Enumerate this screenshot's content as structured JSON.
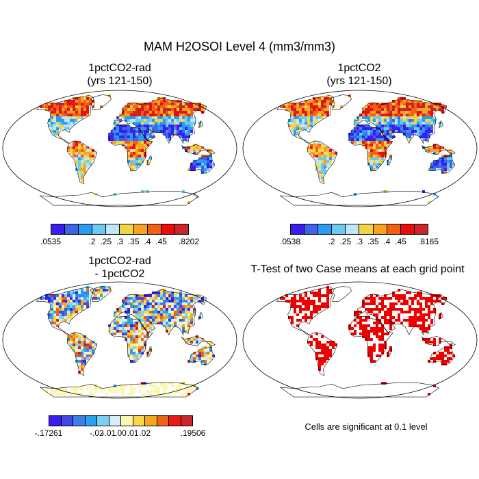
{
  "title": "MAM H2OSOI Level 4 (mm3/mm3)",
  "chart_data": [
    {
      "type": "heatmap",
      "title_line1": "1pctCO2-rad",
      "title_line2": "(yrs 121-150)",
      "colorbar": {
        "colors": [
          "#3a1df0",
          "#3f63e6",
          "#2a9bef",
          "#6ccaf2",
          "#bfe6f7",
          "#f3d446",
          "#f6a321",
          "#f26016",
          "#ee0b0b",
          "#c8262b"
        ],
        "tick_labels": [
          ".0535",
          ".2",
          ".25",
          ".3",
          ".35",
          ".4",
          ".45",
          ".8202"
        ]
      }
    },
    {
      "type": "heatmap",
      "title_line1": "1pctCO2",
      "title_line2": "(yrs 121-150)",
      "colorbar": {
        "colors": [
          "#3a1df0",
          "#3f63e6",
          "#2a9bef",
          "#6ccaf2",
          "#bfe6f7",
          "#f3d446",
          "#f6a321",
          "#f26016",
          "#ee0b0b",
          "#c8262b"
        ],
        "tick_labels": [
          ".0538",
          ".2",
          ".25",
          ".3",
          ".35",
          ".4",
          ".45",
          ".8165"
        ]
      }
    },
    {
      "type": "heatmap",
      "title_line1": "1pctCO2-rad",
      "title_line2": "- 1pctCO2",
      "colorbar": {
        "colors": [
          "#3a1df0",
          "#3f48e8",
          "#3c7fe6",
          "#2aa3ee",
          "#7cd0f4",
          "#d4eefa",
          "#fbf6b0",
          "#f7d64a",
          "#f5a623",
          "#f06418",
          "#e81d0f",
          "#c8262b"
        ],
        "tick_labels": [
          "-.17261",
          "-.02",
          "-.01",
          ".00",
          ".01",
          ".02",
          ".19506"
        ]
      }
    },
    {
      "type": "heatmap",
      "title_line1": "T-Test of two Case means at each grid point",
      "significance_color": "#ee0000",
      "note": "Cells are significant at 0.1 level"
    }
  ]
}
